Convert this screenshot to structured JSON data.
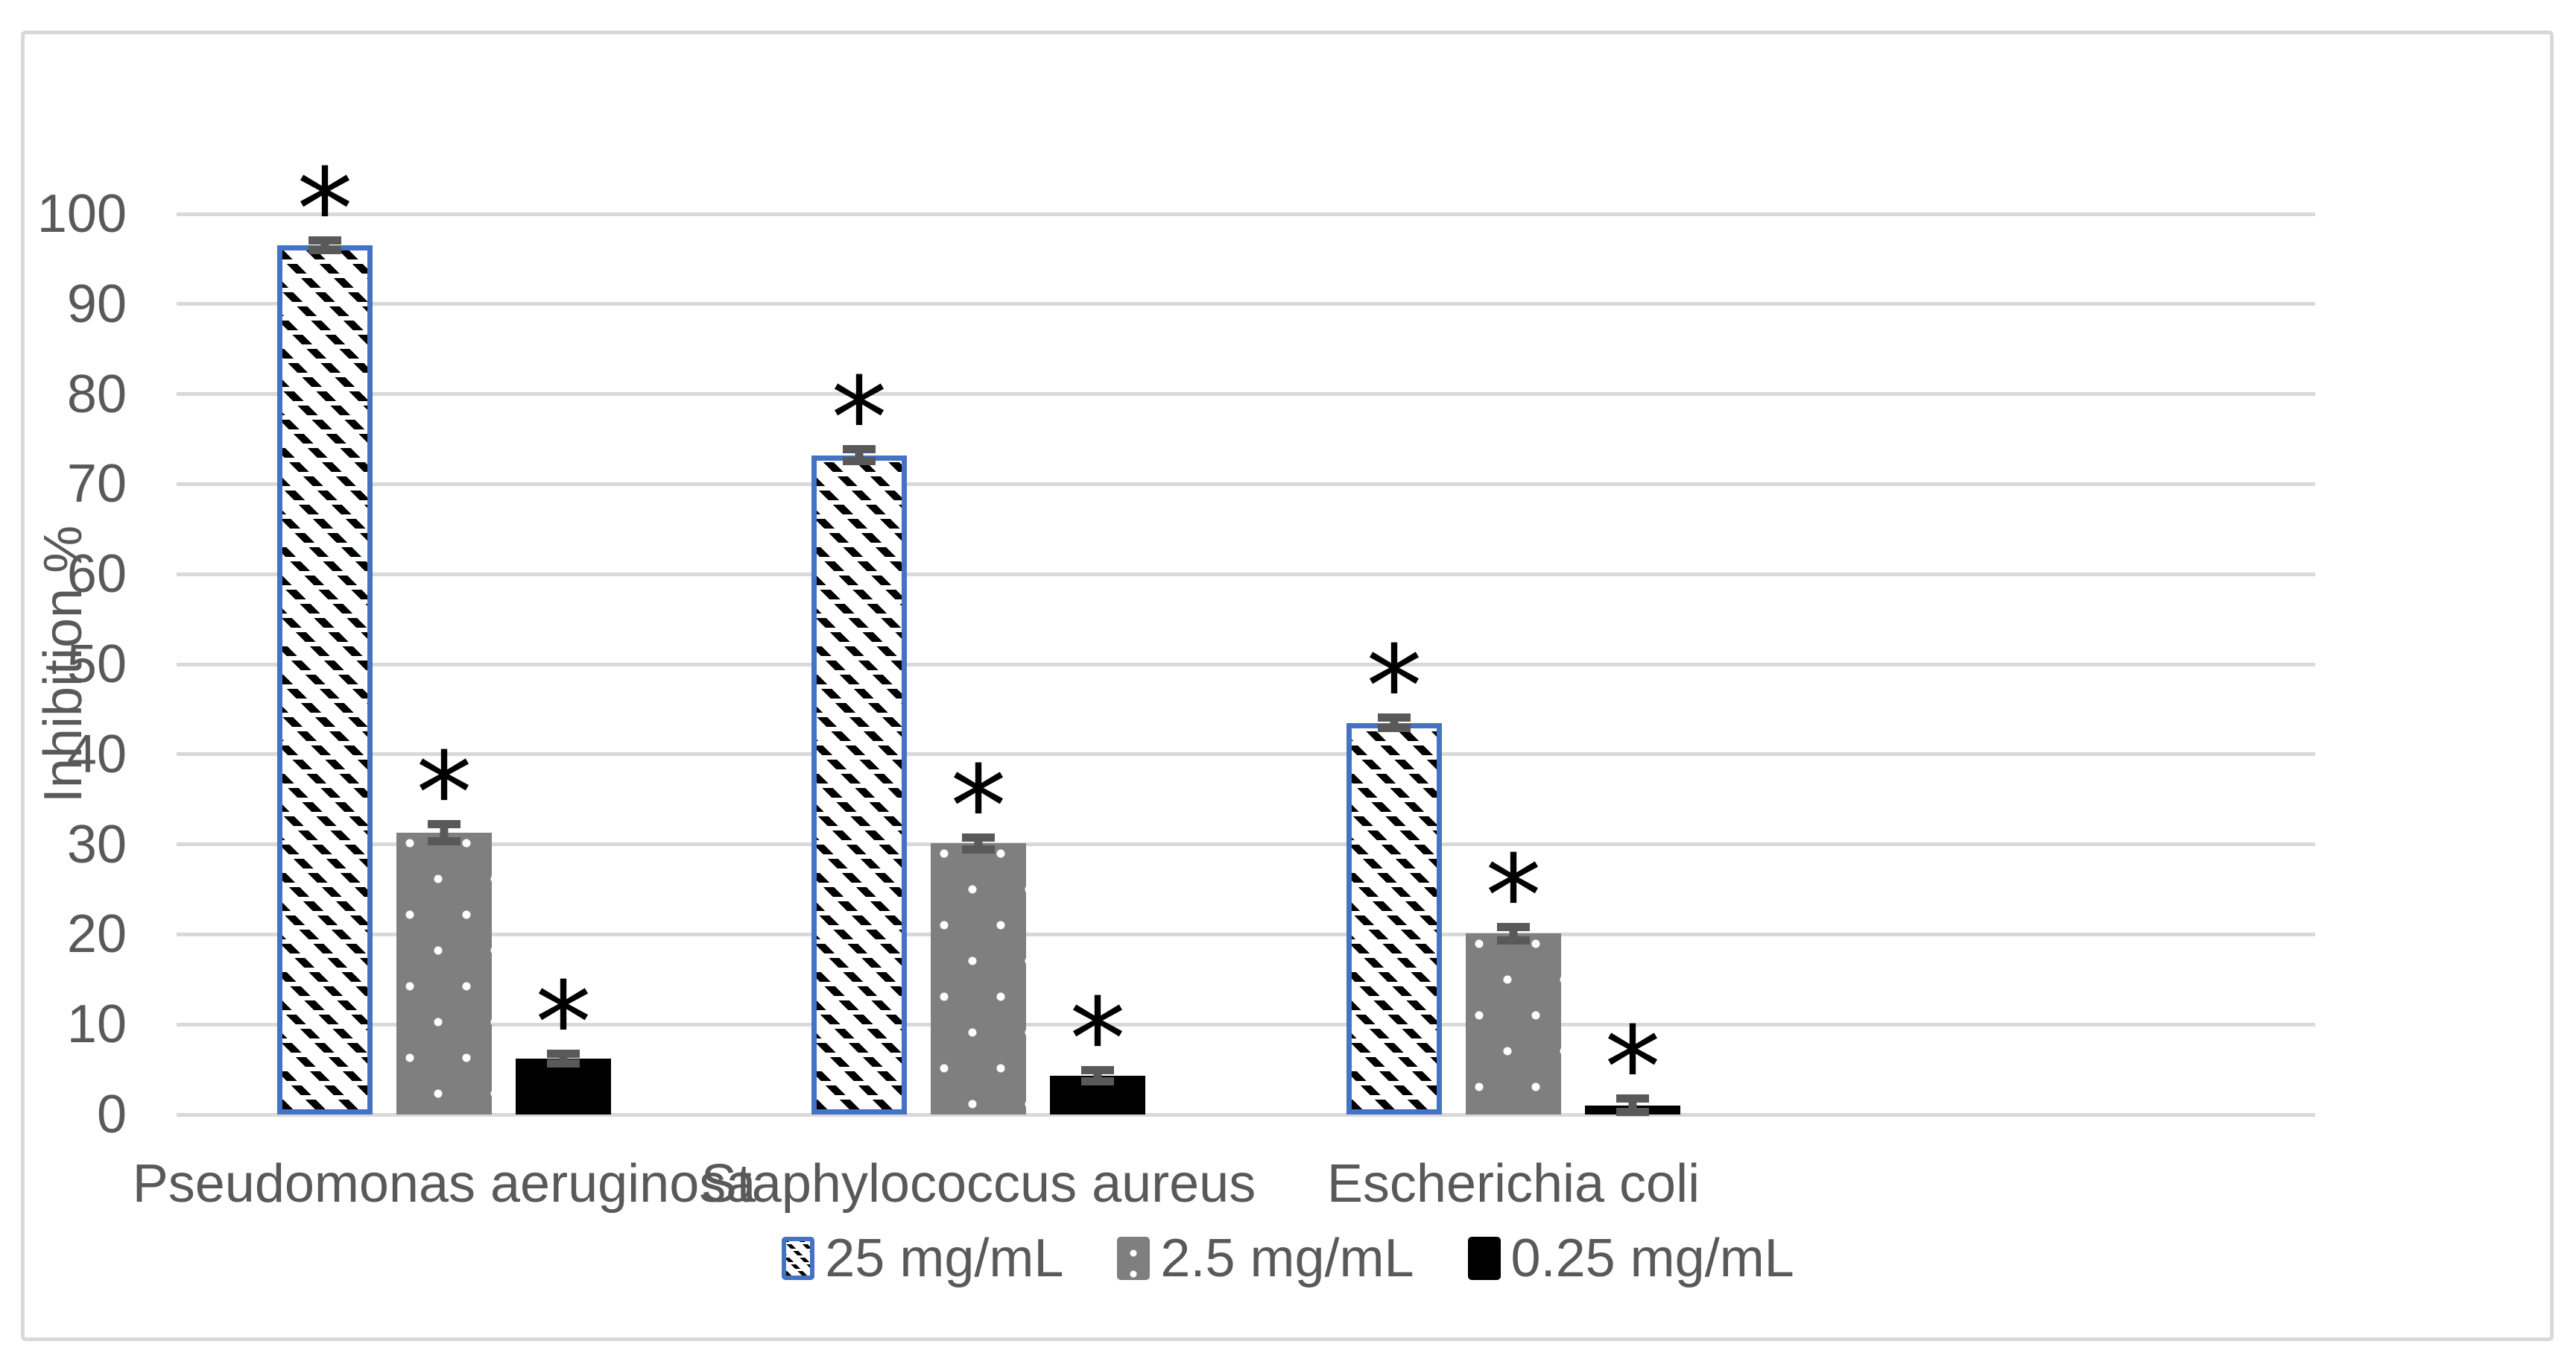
{
  "figure": {
    "background_color": "#ffffff",
    "border_color": "#d9d9d9"
  },
  "chart_data": {
    "type": "bar",
    "title": "",
    "xlabel": "",
    "ylabel": "Inhibition %",
    "ylim": [
      0,
      100
    ],
    "ytick_interval": 10,
    "ytick_labels": [
      "0",
      "10",
      "20",
      "30",
      "40",
      "50",
      "60",
      "70",
      "80",
      "90",
      "100"
    ],
    "grid": true,
    "gridline_color": "#d9d9d9",
    "axis_text_color": "#595959",
    "error_bar_color": "#595959",
    "legend_position": "bottom-center",
    "significance_symbol": "*",
    "categories": [
      "Pseudomonas aeruginosa",
      "Staphylococcus aureus",
      "Escherichia coli"
    ],
    "series": [
      {
        "name": "25 mg/mL",
        "pattern": "diagonal-hatch",
        "border_color": "#4472c4",
        "fill_color": "#ffffff",
        "pattern_color": "#000000",
        "values": [
          96.5,
          73.2,
          43.5
        ],
        "errors": [
          1.0,
          1.1,
          1.0
        ],
        "significance": [
          "*",
          "*",
          "*"
        ]
      },
      {
        "name": "2.5 mg/mL",
        "pattern": "white-dots",
        "fill_color": "#7f7f7f",
        "pattern_color": "#ffffff",
        "values": [
          31.3,
          30.1,
          20.1
        ],
        "errors": [
          1.4,
          1.1,
          1.2
        ],
        "significance": [
          "*",
          "*",
          "*"
        ]
      },
      {
        "name": "0.25 mg/mL",
        "pattern": "solid",
        "fill_color": "#000000",
        "values": [
          6.2,
          4.3,
          1.0
        ],
        "errors": [
          1.0,
          1.1,
          1.2
        ],
        "significance": [
          "*",
          "*",
          "*"
        ]
      }
    ]
  }
}
